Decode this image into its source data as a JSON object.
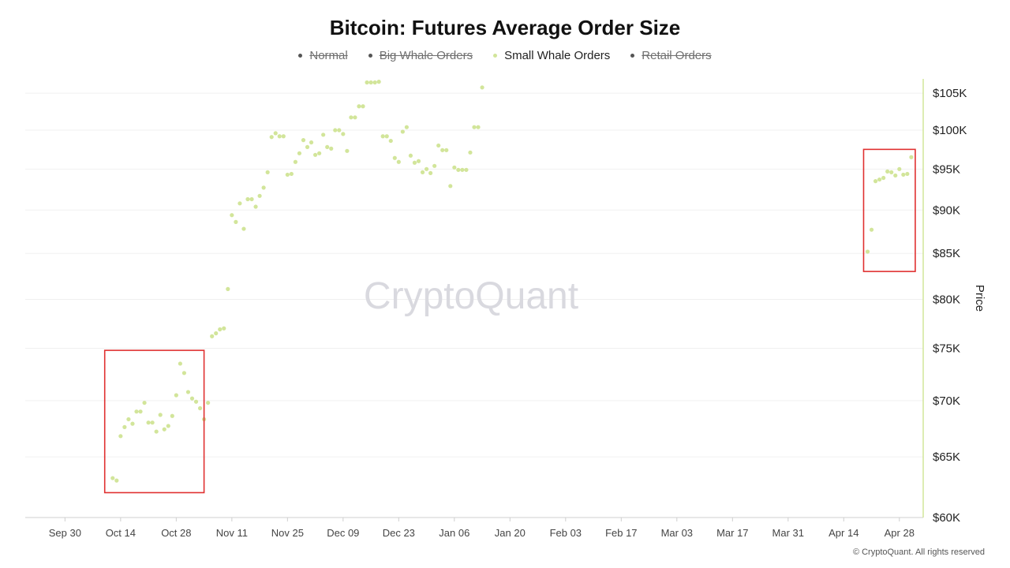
{
  "chart_data": {
    "type": "scatter",
    "title": "Bitcoin: Futures Average Order Size",
    "ylabel": "Price",
    "ylim": [
      60000,
      107000
    ],
    "y_scale": "log",
    "y_ticks": [
      60000,
      65000,
      70000,
      75000,
      80000,
      85000,
      90000,
      95000,
      100000,
      105000
    ],
    "y_tick_labels": [
      "$60K",
      "$65K",
      "$70K",
      "$75K",
      "$80K",
      "$85K",
      "$90K",
      "$95K",
      "$100K",
      "$105K"
    ],
    "x_range": [
      "2024-09-20",
      "2025-05-04"
    ],
    "x_ticks": [
      "2024-09-30",
      "2024-10-14",
      "2024-10-28",
      "2024-11-11",
      "2024-11-25",
      "2024-12-09",
      "2024-12-23",
      "2025-01-06",
      "2025-01-20",
      "2025-02-03",
      "2025-02-17",
      "2025-03-03",
      "2025-03-17",
      "2025-03-31",
      "2025-04-14",
      "2025-04-28"
    ],
    "x_tick_labels": [
      "Sep 30",
      "Oct 14",
      "Oct 28",
      "Nov 11",
      "Nov 25",
      "Dec 09",
      "Dec 23",
      "Jan 06",
      "Jan 20",
      "Feb 03",
      "Feb 17",
      "Mar 03",
      "Mar 17",
      "Mar 31",
      "Apr 14",
      "Apr 28"
    ],
    "grid": true,
    "legend_position": "top-center",
    "legend": [
      {
        "name": "Normal",
        "color": "#555555",
        "hidden": true
      },
      {
        "name": "Big Whale Orders",
        "color": "#555555",
        "hidden": true
      },
      {
        "name": "Small Whale Orders",
        "color": "#d2e59a",
        "hidden": false
      },
      {
        "name": "Retail Orders",
        "color": "#555555",
        "hidden": true
      }
    ],
    "series": [
      {
        "name": "Small Whale Orders",
        "color": "#d2e59a",
        "points": [
          {
            "x": "2024-10-12",
            "y": 63200
          },
          {
            "x": "2024-10-13",
            "y": 63000
          },
          {
            "x": "2024-10-14",
            "y": 66800
          },
          {
            "x": "2024-10-15",
            "y": 67600
          },
          {
            "x": "2024-10-16",
            "y": 68300
          },
          {
            "x": "2024-10-17",
            "y": 67900
          },
          {
            "x": "2024-10-18",
            "y": 69000
          },
          {
            "x": "2024-10-19",
            "y": 69000
          },
          {
            "x": "2024-10-20",
            "y": 69800
          },
          {
            "x": "2024-10-21",
            "y": 68000
          },
          {
            "x": "2024-10-22",
            "y": 68000
          },
          {
            "x": "2024-10-23",
            "y": 67200
          },
          {
            "x": "2024-10-24",
            "y": 68700
          },
          {
            "x": "2024-10-25",
            "y": 67400
          },
          {
            "x": "2024-10-26",
            "y": 67700
          },
          {
            "x": "2024-10-27",
            "y": 68600
          },
          {
            "x": "2024-10-28",
            "y": 70500
          },
          {
            "x": "2024-10-29",
            "y": 73500
          },
          {
            "x": "2024-10-30",
            "y": 72600
          },
          {
            "x": "2024-10-31",
            "y": 70800
          },
          {
            "x": "2024-11-01",
            "y": 70200
          },
          {
            "x": "2024-11-02",
            "y": 69900
          },
          {
            "x": "2024-11-03",
            "y": 69300
          },
          {
            "x": "2024-11-04",
            "y": 68300
          },
          {
            "x": "2024-11-05",
            "y": 69800
          },
          {
            "x": "2024-11-06",
            "y": 76200
          },
          {
            "x": "2024-11-07",
            "y": 76500
          },
          {
            "x": "2024-11-08",
            "y": 76900
          },
          {
            "x": "2024-11-09",
            "y": 77000
          },
          {
            "x": "2024-11-10",
            "y": 81100
          },
          {
            "x": "2024-11-11",
            "y": 89400
          },
          {
            "x": "2024-11-12",
            "y": 88600
          },
          {
            "x": "2024-11-13",
            "y": 90800
          },
          {
            "x": "2024-11-14",
            "y": 87800
          },
          {
            "x": "2024-11-15",
            "y": 91300
          },
          {
            "x": "2024-11-16",
            "y": 91300
          },
          {
            "x": "2024-11-17",
            "y": 90400
          },
          {
            "x": "2024-11-18",
            "y": 91700
          },
          {
            "x": "2024-11-19",
            "y": 92700
          },
          {
            "x": "2024-11-20",
            "y": 94600
          },
          {
            "x": "2024-11-21",
            "y": 99100
          },
          {
            "x": "2024-11-22",
            "y": 99600
          },
          {
            "x": "2024-11-23",
            "y": 99200
          },
          {
            "x": "2024-11-24",
            "y": 99200
          },
          {
            "x": "2024-11-25",
            "y": 94300
          },
          {
            "x": "2024-11-26",
            "y": 94400
          },
          {
            "x": "2024-11-27",
            "y": 95900
          },
          {
            "x": "2024-11-28",
            "y": 97000
          },
          {
            "x": "2024-11-29",
            "y": 98700
          },
          {
            "x": "2024-11-30",
            "y": 97800
          },
          {
            "x": "2024-12-01",
            "y": 98400
          },
          {
            "x": "2024-12-02",
            "y": 96800
          },
          {
            "x": "2024-12-03",
            "y": 97000
          },
          {
            "x": "2024-12-04",
            "y": 99400
          },
          {
            "x": "2024-12-05",
            "y": 97800
          },
          {
            "x": "2024-12-06",
            "y": 97600
          },
          {
            "x": "2024-12-07",
            "y": 100000
          },
          {
            "x": "2024-12-08",
            "y": 100000
          },
          {
            "x": "2024-12-09",
            "y": 99500
          },
          {
            "x": "2024-12-10",
            "y": 97300
          },
          {
            "x": "2024-12-11",
            "y": 101700
          },
          {
            "x": "2024-12-12",
            "y": 101700
          },
          {
            "x": "2024-12-13",
            "y": 103200
          },
          {
            "x": "2024-12-14",
            "y": 103200
          },
          {
            "x": "2024-12-15",
            "y": 106500
          },
          {
            "x": "2024-12-16",
            "y": 106500
          },
          {
            "x": "2024-12-17",
            "y": 106500
          },
          {
            "x": "2024-12-18",
            "y": 106600
          },
          {
            "x": "2024-12-19",
            "y": 99200
          },
          {
            "x": "2024-12-20",
            "y": 99200
          },
          {
            "x": "2024-12-21",
            "y": 98600
          },
          {
            "x": "2024-12-22",
            "y": 96400
          },
          {
            "x": "2024-12-23",
            "y": 95900
          },
          {
            "x": "2024-12-24",
            "y": 99800
          },
          {
            "x": "2024-12-25",
            "y": 100400
          },
          {
            "x": "2024-12-26",
            "y": 96700
          },
          {
            "x": "2024-12-27",
            "y": 95800
          },
          {
            "x": "2024-12-28",
            "y": 96000
          },
          {
            "x": "2024-12-29",
            "y": 94600
          },
          {
            "x": "2024-12-30",
            "y": 95000
          },
          {
            "x": "2024-12-31",
            "y": 94500
          },
          {
            "x": "2025-01-01",
            "y": 95400
          },
          {
            "x": "2025-01-02",
            "y": 98000
          },
          {
            "x": "2025-01-03",
            "y": 97400
          },
          {
            "x": "2025-01-04",
            "y": 97400
          },
          {
            "x": "2025-01-05",
            "y": 92900
          },
          {
            "x": "2025-01-06",
            "y": 95200
          },
          {
            "x": "2025-01-07",
            "y": 94900
          },
          {
            "x": "2025-01-08",
            "y": 94900
          },
          {
            "x": "2025-01-09",
            "y": 94900
          },
          {
            "x": "2025-01-10",
            "y": 97100
          },
          {
            "x": "2025-01-11",
            "y": 100400
          },
          {
            "x": "2025-01-12",
            "y": 100400
          },
          {
            "x": "2025-01-13",
            "y": 105800
          },
          {
            "x": "2025-04-20",
            "y": 85200
          },
          {
            "x": "2025-04-21",
            "y": 87700
          },
          {
            "x": "2025-04-22",
            "y": 93500
          },
          {
            "x": "2025-04-23",
            "y": 93700
          },
          {
            "x": "2025-04-24",
            "y": 93900
          },
          {
            "x": "2025-04-25",
            "y": 94700
          },
          {
            "x": "2025-04-26",
            "y": 94600
          },
          {
            "x": "2025-04-27",
            "y": 94200
          },
          {
            "x": "2025-04-28",
            "y": 95000
          },
          {
            "x": "2025-04-29",
            "y": 94300
          },
          {
            "x": "2025-04-30",
            "y": 94400
          },
          {
            "x": "2025-05-01",
            "y": 96500
          }
        ]
      }
    ],
    "highlight_boxes": [
      {
        "x_from": "2024-10-10",
        "x_to": "2024-11-04",
        "y_from": 62000,
        "y_to": 74800,
        "color": "#e03030"
      },
      {
        "x_from": "2025-04-19",
        "x_to": "2025-05-02",
        "y_from": 83000,
        "y_to": 97500,
        "color": "#e03030"
      }
    ]
  },
  "watermark": "CryptoQuant",
  "copyright": "© CryptoQuant. All rights reserved"
}
